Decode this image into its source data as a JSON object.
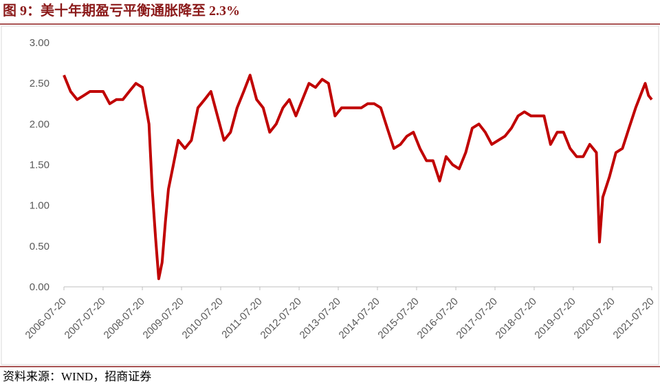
{
  "chart_data": {
    "type": "line",
    "title": "图 9：美十年期盈亏平衡通胀降至 2.3%",
    "source": "资料来源：WIND，招商证券",
    "color": "#c00000",
    "x": [
      "2006-07-20",
      "2006-09-20",
      "2006-11-20",
      "2007-01-20",
      "2007-03-20",
      "2007-05-20",
      "2007-07-20",
      "2007-09-20",
      "2007-11-20",
      "2008-01-20",
      "2008-03-20",
      "2008-05-20",
      "2008-07-20",
      "2008-09-20",
      "2008-10-20",
      "2008-11-20",
      "2008-12-20",
      "2009-01-20",
      "2009-02-20",
      "2009-03-20",
      "2009-04-20",
      "2009-06-20",
      "2009-08-20",
      "2009-10-20",
      "2009-12-20",
      "2010-02-20",
      "2010-04-20",
      "2010-06-20",
      "2010-08-20",
      "2010-10-20",
      "2010-12-20",
      "2011-02-20",
      "2011-04-20",
      "2011-06-20",
      "2011-08-20",
      "2011-10-20",
      "2011-12-20",
      "2012-02-20",
      "2012-04-20",
      "2012-06-20",
      "2012-08-20",
      "2012-10-20",
      "2012-12-20",
      "2013-02-20",
      "2013-04-20",
      "2013-06-20",
      "2013-08-20",
      "2013-10-20",
      "2013-12-20",
      "2014-02-20",
      "2014-04-20",
      "2014-06-20",
      "2014-08-20",
      "2014-10-20",
      "2014-12-20",
      "2015-02-20",
      "2015-04-20",
      "2015-06-20",
      "2015-08-20",
      "2015-10-20",
      "2015-12-20",
      "2016-02-20",
      "2016-04-20",
      "2016-06-20",
      "2016-08-20",
      "2016-10-20",
      "2016-12-20",
      "2017-02-20",
      "2017-04-20",
      "2017-06-20",
      "2017-08-20",
      "2017-10-20",
      "2017-12-20",
      "2018-02-20",
      "2018-04-20",
      "2018-06-20",
      "2018-08-20",
      "2018-10-20",
      "2018-12-20",
      "2019-02-20",
      "2019-04-20",
      "2019-06-20",
      "2019-08-20",
      "2019-10-20",
      "2019-12-20",
      "2020-02-20",
      "2020-03-20",
      "2020-04-20",
      "2020-06-20",
      "2020-08-20",
      "2020-10-20",
      "2020-12-20",
      "2021-02-20",
      "2021-04-20",
      "2021-05-20",
      "2021-06-20",
      "2021-07-20"
    ],
    "values": [
      2.6,
      2.4,
      2.3,
      2.35,
      2.4,
      2.4,
      2.4,
      2.25,
      2.3,
      2.3,
      2.4,
      2.5,
      2.45,
      2.0,
      1.2,
      0.6,
      0.1,
      0.3,
      0.8,
      1.2,
      1.4,
      1.8,
      1.7,
      1.8,
      2.2,
      2.3,
      2.4,
      2.1,
      1.8,
      1.9,
      2.2,
      2.4,
      2.6,
      2.3,
      2.2,
      1.9,
      2.0,
      2.2,
      2.3,
      2.1,
      2.3,
      2.5,
      2.45,
      2.55,
      2.5,
      2.1,
      2.2,
      2.2,
      2.2,
      2.2,
      2.25,
      2.25,
      2.2,
      1.95,
      1.7,
      1.75,
      1.85,
      1.9,
      1.7,
      1.55,
      1.55,
      1.3,
      1.6,
      1.5,
      1.45,
      1.65,
      1.95,
      2.0,
      1.9,
      1.75,
      1.8,
      1.85,
      1.95,
      2.1,
      2.15,
      2.1,
      2.1,
      2.1,
      1.75,
      1.9,
      1.9,
      1.7,
      1.6,
      1.6,
      1.75,
      1.65,
      0.55,
      1.1,
      1.35,
      1.65,
      1.7,
      1.95,
      2.2,
      2.4,
      2.5,
      2.35,
      2.3
    ],
    "xlim": [
      "2006-07-20",
      "2021-07-20"
    ],
    "xticks": [
      "2006-07-20",
      "2007-07-20",
      "2008-07-20",
      "2009-07-20",
      "2010-07-20",
      "2011-07-20",
      "2012-07-20",
      "2013-07-20",
      "2014-07-20",
      "2015-07-20",
      "2016-07-20",
      "2017-07-20",
      "2018-07-20",
      "2019-07-20",
      "2020-07-20",
      "2021-07-20"
    ],
    "ylim": [
      0,
      3
    ],
    "yticks": [
      {
        "value": 0,
        "label": "0.00"
      },
      {
        "value": 0.5,
        "label": "0.50"
      },
      {
        "value": 1,
        "label": "1.00"
      },
      {
        "value": 1.5,
        "label": "1.50"
      },
      {
        "value": 2,
        "label": "2.00"
      },
      {
        "value": 2.5,
        "label": "2.50"
      },
      {
        "value": 3,
        "label": "3.00"
      }
    ]
  }
}
